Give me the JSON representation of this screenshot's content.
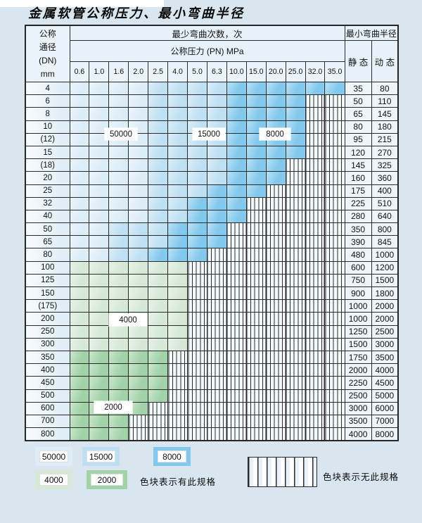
{
  "title": "金属软管公称压力、最小弯曲半径",
  "colors": {
    "c50000": "#dcedf8",
    "c15000": "#bfe0f3",
    "c8000": "#82c9ed",
    "c4000": "#d6e9d7",
    "c2000": "#a2d3a8"
  },
  "table": {
    "header": {
      "dn_lines": [
        "公称",
        "通径",
        "(DN)",
        "mm"
      ],
      "bend_count": "最少弯曲次数，次",
      "pressure": "公称压力 (PN) MPa",
      "radius": "最小弯曲半径",
      "static": "静 态",
      "dynamic": "动 态",
      "pressures": [
        "0.6",
        "1.0",
        "1.6",
        "2.0",
        "2.5",
        "4.0",
        "5.0",
        "6.3",
        "10.0",
        "15.0",
        "20.0",
        "25.0",
        "32.0",
        "35.0"
      ]
    },
    "rows": [
      {
        "dn": "4",
        "bands": [
          [
            "c50000",
            4
          ],
          [
            "c15000",
            4
          ],
          [
            "c8000",
            6
          ]
        ],
        "static": "35",
        "dynamic": "80"
      },
      {
        "dn": "6",
        "bands": [
          [
            "c50000",
            4
          ],
          [
            "c15000",
            4
          ],
          [
            "c8000",
            4
          ]
        ],
        "static": "50",
        "dynamic": "110"
      },
      {
        "dn": "8",
        "bands": [
          [
            "c50000",
            4
          ],
          [
            "c15000",
            4
          ],
          [
            "c8000",
            4
          ]
        ],
        "static": "65",
        "dynamic": "145"
      },
      {
        "dn": "10",
        "bands": [
          [
            "c50000",
            4
          ],
          [
            "c15000",
            4
          ],
          [
            "c8000",
            4
          ]
        ],
        "static": "80",
        "dynamic": "180"
      },
      {
        "dn": "(12)",
        "bands": [
          [
            "c50000",
            4
          ],
          [
            "c15000",
            4
          ],
          [
            "c8000",
            4
          ]
        ],
        "static": "95",
        "dynamic": "215"
      },
      {
        "dn": "15",
        "bands": [
          [
            "c50000",
            4
          ],
          [
            "c15000",
            4
          ],
          [
            "c8000",
            4
          ]
        ],
        "static": "120",
        "dynamic": "270"
      },
      {
        "dn": "(18)",
        "bands": [
          [
            "c50000",
            4
          ],
          [
            "c15000",
            4
          ],
          [
            "c8000",
            3
          ]
        ],
        "static": "145",
        "dynamic": "325"
      },
      {
        "dn": "20",
        "bands": [
          [
            "c50000",
            4
          ],
          [
            "c15000",
            4
          ],
          [
            "c8000",
            3
          ]
        ],
        "static": "160",
        "dynamic": "360"
      },
      {
        "dn": "25",
        "bands": [
          [
            "c50000",
            4
          ],
          [
            "c15000",
            3
          ],
          [
            "c8000",
            3
          ]
        ],
        "static": "175",
        "dynamic": "400"
      },
      {
        "dn": "32",
        "bands": [
          [
            "c50000",
            4
          ],
          [
            "c15000",
            2
          ],
          [
            "c8000",
            3
          ]
        ],
        "static": "225",
        "dynamic": "510"
      },
      {
        "dn": "40",
        "bands": [
          [
            "c50000",
            4
          ],
          [
            "c15000",
            2
          ],
          [
            "c8000",
            3
          ]
        ],
        "static": "280",
        "dynamic": "640"
      },
      {
        "dn": "50",
        "bands": [
          [
            "c50000",
            2
          ],
          [
            "c15000",
            3
          ],
          [
            "c8000",
            3
          ]
        ],
        "static": "350",
        "dynamic": "800"
      },
      {
        "dn": "65",
        "bands": [
          [
            "c50000",
            2
          ],
          [
            "c15000",
            3
          ],
          [
            "c8000",
            3
          ]
        ],
        "static": "390",
        "dynamic": "845"
      },
      {
        "dn": "80",
        "bands": [
          [
            "c50000",
            2
          ],
          [
            "c15000",
            2
          ],
          [
            "c8000",
            3
          ]
        ],
        "static": "480",
        "dynamic": "1000"
      },
      {
        "dn": "100",
        "bands": [
          [
            "c4000",
            6
          ]
        ],
        "static": "600",
        "dynamic": "1200"
      },
      {
        "dn": "125",
        "bands": [
          [
            "c4000",
            6
          ]
        ],
        "static": "750",
        "dynamic": "1500"
      },
      {
        "dn": "150",
        "bands": [
          [
            "c4000",
            6
          ]
        ],
        "static": "900",
        "dynamic": "1800"
      },
      {
        "dn": "(175)",
        "bands": [
          [
            "c4000",
            6
          ]
        ],
        "static": "1000",
        "dynamic": "2000"
      },
      {
        "dn": "200",
        "bands": [
          [
            "c4000",
            6
          ]
        ],
        "static": "1000",
        "dynamic": "2000"
      },
      {
        "dn": "250",
        "bands": [
          [
            "c4000",
            6
          ]
        ],
        "static": "1250",
        "dynamic": "2500"
      },
      {
        "dn": "300",
        "bands": [
          [
            "c4000",
            6
          ]
        ],
        "static": "1500",
        "dynamic": "3000"
      },
      {
        "dn": "350",
        "bands": [
          [
            "c2000",
            5
          ]
        ],
        "static": "1750",
        "dynamic": "3500"
      },
      {
        "dn": "400",
        "bands": [
          [
            "c2000",
            5
          ]
        ],
        "static": "2000",
        "dynamic": "4000"
      },
      {
        "dn": "450",
        "bands": [
          [
            "c2000",
            5
          ]
        ],
        "static": "2250",
        "dynamic": "4500"
      },
      {
        "dn": "500",
        "bands": [
          [
            "c2000",
            5
          ]
        ],
        "static": "2500",
        "dynamic": "5000"
      },
      {
        "dn": "600",
        "bands": [
          [
            "c2000",
            4
          ]
        ],
        "static": "3000",
        "dynamic": "6000"
      },
      {
        "dn": "700",
        "bands": [
          [
            "c2000",
            3
          ]
        ],
        "static": "3500",
        "dynamic": "7000"
      },
      {
        "dn": "800",
        "bands": [
          [
            "c2000",
            3
          ]
        ],
        "static": "4000",
        "dynamic": "8000"
      }
    ],
    "column_count": 14
  },
  "overlay_labels": [
    "50000",
    "15000",
    "8000",
    "4000",
    "2000"
  ],
  "legend": {
    "items": [
      {
        "label": "50000",
        "color": "c50000"
      },
      {
        "label": "15000",
        "color": "c15000"
      },
      {
        "label": "8000",
        "color": "c8000"
      },
      {
        "label": "4000",
        "color": "c4000"
      },
      {
        "label": "2000",
        "color": "c2000"
      }
    ],
    "has_spec_text": "色块表示有此规格",
    "no_spec_text": "色块表示无此规格"
  }
}
